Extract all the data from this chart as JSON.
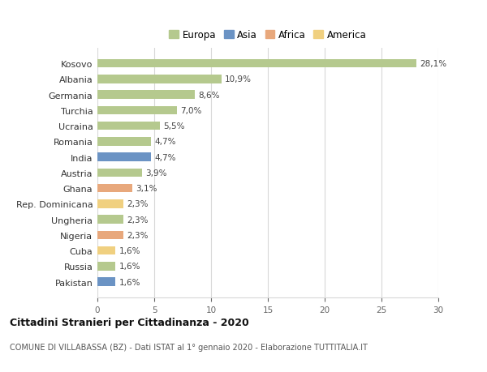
{
  "categories": [
    "Kosovo",
    "Albania",
    "Germania",
    "Turchia",
    "Ucraina",
    "Romania",
    "India",
    "Austria",
    "Ghana",
    "Rep. Dominicana",
    "Ungheria",
    "Nigeria",
    "Cuba",
    "Russia",
    "Pakistan"
  ],
  "values": [
    28.1,
    10.9,
    8.6,
    7.0,
    5.5,
    4.7,
    4.7,
    3.9,
    3.1,
    2.3,
    2.3,
    2.3,
    1.6,
    1.6,
    1.6
  ],
  "labels": [
    "28,1%",
    "10,9%",
    "8,6%",
    "7,0%",
    "5,5%",
    "4,7%",
    "4,7%",
    "3,9%",
    "3,1%",
    "2,3%",
    "2,3%",
    "2,3%",
    "1,6%",
    "1,6%",
    "1,6%"
  ],
  "continents": [
    "Europa",
    "Europa",
    "Europa",
    "Europa",
    "Europa",
    "Europa",
    "Asia",
    "Europa",
    "Africa",
    "America",
    "Europa",
    "Africa",
    "America",
    "Europa",
    "Asia"
  ],
  "continent_colors": {
    "Europa": "#b5c98e",
    "Asia": "#6b93c4",
    "Africa": "#e8a87c",
    "America": "#f0d080"
  },
  "legend_order": [
    "Europa",
    "Asia",
    "Africa",
    "America"
  ],
  "title": "Cittadini Stranieri per Cittadinanza - 2020",
  "subtitle": "COMUNE DI VILLABASSA (BZ) - Dati ISTAT al 1° gennaio 2020 - Elaborazione TUTTITALIA.IT",
  "xlim": [
    0,
    30
  ],
  "xticks": [
    0,
    5,
    10,
    15,
    20,
    25,
    30
  ],
  "background_color": "#ffffff",
  "grid_color": "#d8d8d8",
  "bar_height": 0.55
}
